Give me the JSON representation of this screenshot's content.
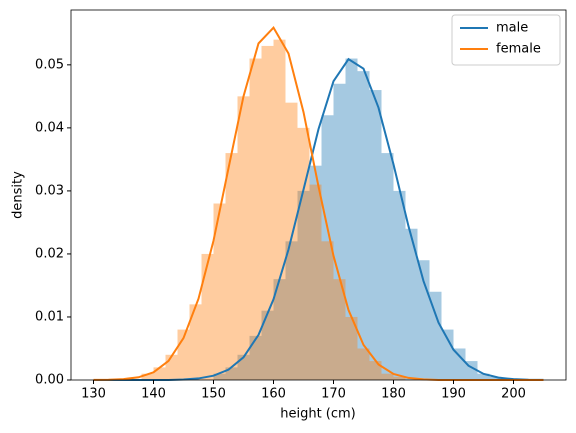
{
  "chart_data": {
    "type": "histogram",
    "xlabel": "height (cm)",
    "ylabel": "density",
    "xlim": [
      126.25,
      208.75
    ],
    "ylim": [
      0,
      0.0587
    ],
    "xticks": [
      130,
      140,
      150,
      160,
      170,
      180,
      190,
      200
    ],
    "yticks": [
      {
        "value": 0,
        "label": "0.00"
      },
      {
        "value": 0.01,
        "label": "0.01"
      },
      {
        "value": 0.02,
        "label": "0.02"
      },
      {
        "value": 0.03,
        "label": "0.03"
      },
      {
        "value": 0.04,
        "label": "0.04"
      },
      {
        "value": 0.05,
        "label": "0.05"
      }
    ],
    "legend": "upper right",
    "x": [
      130,
      132.5,
      135,
      137.5,
      140,
      142.5,
      145,
      147.5,
      150,
      152.5,
      155,
      157.5,
      160,
      162.5,
      165,
      167.5,
      170,
      172.5,
      175,
      177.5,
      180,
      182.5,
      185,
      187.5,
      190,
      192.5,
      195,
      197.5,
      200,
      202.5,
      205
    ],
    "series": [
      {
        "name": "male",
        "color": "#1f77b4",
        "values": [
          0,
          0,
          0,
          0,
          0,
          0,
          8e-05,
          0.00025,
          0.00068,
          0.00164,
          0.0036,
          0.00716,
          0.0128,
          0.0207,
          0.0302,
          0.0398,
          0.0474,
          0.0509,
          0.0494,
          0.0432,
          0.0342,
          0.0244,
          0.0157,
          0.0091,
          0.0048,
          0.00227,
          0.00098,
          0.00038,
          0.00013,
          4e-05,
          1e-05
        ],
        "hist": {
          "bins": [
            150,
            152,
            154,
            156,
            158,
            160,
            162,
            164,
            166,
            168,
            170,
            172,
            174,
            176,
            178,
            180,
            182,
            184,
            186,
            188,
            190,
            192,
            194,
            196,
            198
          ],
          "values": [
            0.001,
            0.002,
            0.004,
            0.007,
            0.011,
            0.016,
            0.022,
            0.03,
            0.034,
            0.042,
            0.047,
            0.051,
            0.049,
            0.046,
            0.036,
            0.03,
            0.024,
            0.019,
            0.014,
            0.008,
            0.005,
            0.003,
            0.001,
            0.0005
          ]
        }
      },
      {
        "name": "female",
        "color": "#ff7f0e",
        "values": [
          1e-05,
          4e-05,
          0.00014,
          0.00043,
          0.00122,
          0.00302,
          0.00665,
          0.0129,
          0.0221,
          0.0336,
          0.045,
          0.0534,
          0.0559,
          0.0518,
          0.0425,
          0.0307,
          0.0197,
          0.0111,
          0.00557,
          0.00246,
          0.00096,
          0.00033,
          0.0001,
          0,
          0,
          0,
          0,
          0,
          0,
          0,
          0
        ],
        "hist": {
          "bins": [
            138,
            140,
            142,
            144,
            146,
            148,
            150,
            152,
            154,
            156,
            158,
            160,
            162,
            164,
            166,
            168,
            170,
            172,
            174,
            176,
            178,
            180,
            182
          ],
          "values": [
            0.001,
            0.002,
            0.004,
            0.008,
            0.012,
            0.02,
            0.028,
            0.036,
            0.045,
            0.051,
            0.053,
            0.054,
            0.044,
            0.04,
            0.031,
            0.022,
            0.016,
            0.01,
            0.005,
            0.003,
            0.001,
            0.0005
          ]
        }
      }
    ]
  }
}
